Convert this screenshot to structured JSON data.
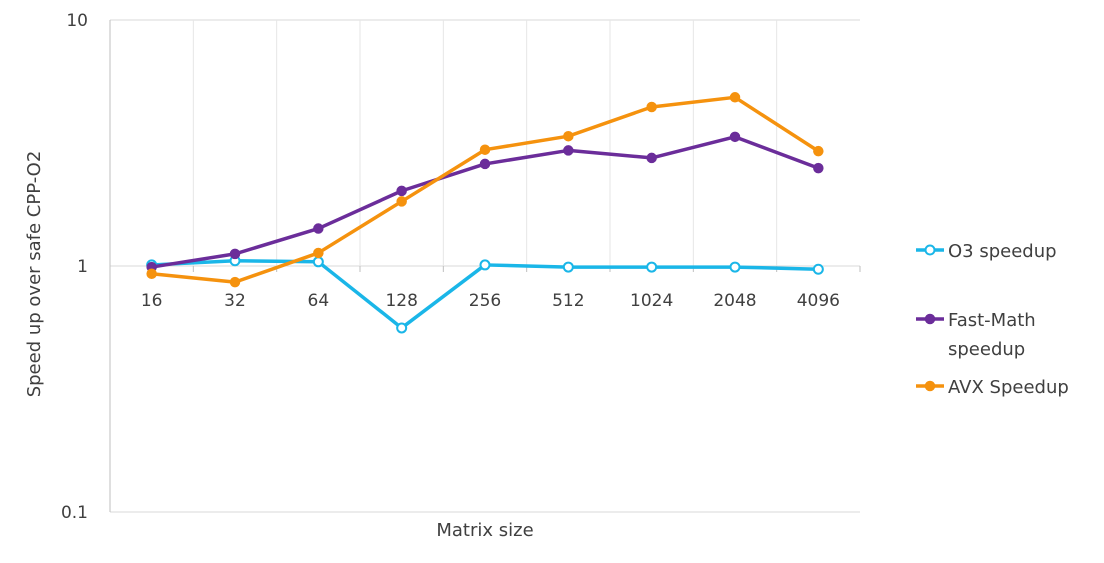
{
  "chart_data": {
    "type": "line",
    "title": "",
    "xlabel": "Matrix size",
    "ylabel": "Speed up over safe CPP-O2",
    "yscale": "log",
    "ylim": [
      0.1,
      10
    ],
    "yticks": [
      "0.1",
      "1",
      "10"
    ],
    "categories": [
      "16",
      "32",
      "64",
      "128",
      "256",
      "512",
      "1024",
      "2048",
      "4096"
    ],
    "grid": "horizontal major + vertical category",
    "legend_position": "right",
    "series": [
      {
        "name": "O3 speedup",
        "color": "#1ab6e8",
        "marker": "open-circle",
        "values": [
          1.01,
          1.05,
          1.04,
          0.56,
          1.01,
          0.99,
          0.99,
          0.99,
          0.97
        ]
      },
      {
        "name": "Fast-Math speedup",
        "color": "#6b2d9a",
        "marker": "filled-circle",
        "values": [
          0.99,
          1.12,
          1.42,
          2.02,
          2.6,
          2.95,
          2.75,
          3.35,
          2.5
        ]
      },
      {
        "name": "AVX Speedup",
        "color": "#f5920e",
        "marker": "filled-circle",
        "values": [
          0.93,
          0.86,
          1.13,
          1.83,
          2.97,
          3.37,
          4.43,
          4.85,
          2.93
        ]
      }
    ]
  },
  "legend": {
    "items": [
      {
        "lines": [
          "O3 speedup"
        ]
      },
      {
        "lines": [
          "Fast-Math",
          "speedup"
        ]
      },
      {
        "lines": [
          "AVX Speedup"
        ]
      }
    ]
  }
}
